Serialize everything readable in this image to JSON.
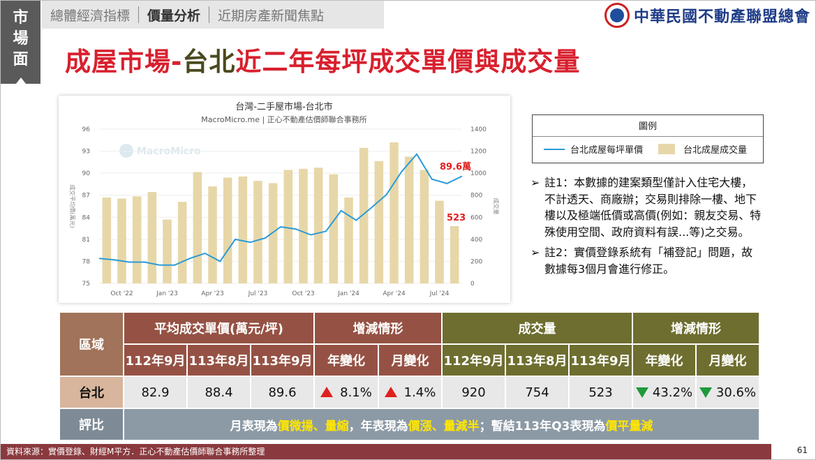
{
  "side_tab": [
    "市",
    "場",
    "面"
  ],
  "nav": {
    "items": [
      "總體經濟指標",
      "價量分析",
      "近期房產新聞焦點"
    ],
    "active_index": 1
  },
  "logo": {
    "text": "中華民國不動產聯盟總會"
  },
  "title": {
    "part1": "成屋市場-",
    "part2": "台北",
    "part3": "近二年每坪成交單價與成交量"
  },
  "legend": {
    "title": "圖例",
    "line_label": "台北成屋每坪單價",
    "bar_label": "台北成屋成交量"
  },
  "notes": [
    {
      "marker": "➢",
      "text": "註1：本數據的建案類型僅計入住宅大樓，不計透天、商廠辦；交易則排除一樓、地下樓以及極端低價或高價(例如：親友交易、特殊使用空間、政府資料有誤...等)之交易。"
    },
    {
      "marker": "➢",
      "text": "註2：實價登錄系統有「補登記」問題，故數據每3個月會進行修正。"
    }
  ],
  "table": {
    "region_header": "區域",
    "price_header": "平均成交單價(萬元/坪)",
    "change_header": "增減情形",
    "volume_header": "成交量",
    "change_header2": "增減情形",
    "period_labels": [
      "112年9月",
      "113年8月",
      "113年9月"
    ],
    "yoy_label": "年變化",
    "mom_label": "月變化",
    "row_region": "台北",
    "price_values": [
      "82.9",
      "88.4",
      "89.6"
    ],
    "price_yoy": "8.1%",
    "price_mom": "1.4%",
    "volume_values": [
      "920",
      "754",
      "523"
    ],
    "volume_yoy": "43.2%",
    "volume_mom": "30.6%",
    "eval_label": "評比",
    "comment": {
      "p1": "月表現為",
      "h1": "價微揚、量縮",
      "p2": "，年表現為",
      "h2": "價漲、量減半",
      "p3": "；暫結113年Q3表現為",
      "h3": "價平量減"
    }
  },
  "footer": {
    "source": "資料來源：實價登錄、財經M平方．正心不動產估價師聯合事務所整理",
    "page": "61"
  },
  "colors": {
    "title_red": "#d8202e",
    "line_blue": "#2b9bd6",
    "bar_tan": "#e7d7a8",
    "up_red": "#e0201e",
    "down_green": "#1e9a3a"
  },
  "chart_data": {
    "type": "bar",
    "title": "台灣-二手屋市場-台北市",
    "subtitle": "MacroMicro.me | 正心不動產估價師聯合事務所",
    "watermark": "MacroMicro",
    "ylabel": "成交平均價(萬元)",
    "y2label": "成交量",
    "x_ticks": [
      "Oct '22",
      "Jan '23",
      "Apr '23",
      "Jul '23",
      "Oct '23",
      "Jan '24",
      "Apr '24",
      "Jul '24"
    ],
    "ylim": [
      75,
      96
    ],
    "y_ticks": [
      "75",
      "78",
      "81",
      "84",
      "87",
      "90",
      "93",
      "96"
    ],
    "y2lim": [
      0,
      1400
    ],
    "y2_ticks": [
      "0",
      "200",
      "400",
      "600",
      "800",
      "1000",
      "1200",
      "1400"
    ],
    "series": [
      {
        "type": "bar",
        "axis": "right",
        "values": [
          780,
          770,
          790,
          830,
          580,
          740,
          1010,
          880,
          960,
          970,
          930,
          910,
          1030,
          1040,
          1050,
          990,
          780,
          1230,
          1110,
          1280,
          1150,
          1030,
          750,
          520
        ]
      },
      {
        "type": "line",
        "axis": "left",
        "values": [
          78.4,
          78.2,
          77.9,
          77.9,
          77.5,
          77.5,
          78.4,
          79.1,
          78.0,
          81.0,
          80.6,
          81.2,
          82.7,
          82.4,
          81.6,
          82.1,
          84.9,
          83.6,
          85.3,
          87.1,
          90.2,
          92.6,
          89.2,
          88.6,
          89.6
        ]
      }
    ],
    "annotations": [
      "89.6萬",
      "523"
    ]
  }
}
